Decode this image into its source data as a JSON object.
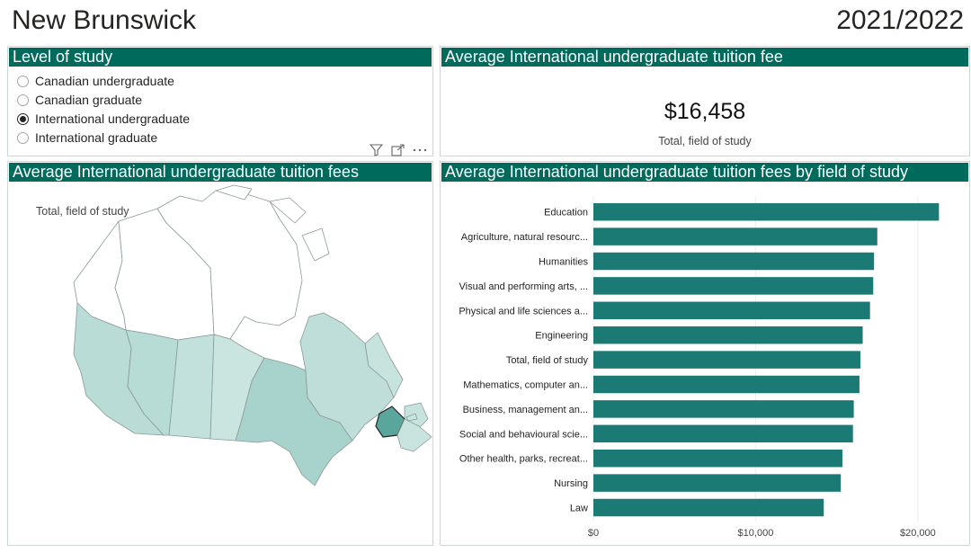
{
  "header": {
    "title": "New Brunswick",
    "year": "2021/2022"
  },
  "level_panel": {
    "title": "Level of study",
    "options": [
      {
        "label": "Canadian undergraduate",
        "selected": false
      },
      {
        "label": "Canadian graduate",
        "selected": false
      },
      {
        "label": "International undergraduate",
        "selected": true
      },
      {
        "label": "International graduate",
        "selected": false
      }
    ]
  },
  "kpi_panel": {
    "title": "Average International undergraduate tuition fee",
    "value": "$16,458",
    "subtitle": "Total, field of study"
  },
  "map_panel": {
    "title": "Average International undergraduate tuition fees",
    "label": "Total, field of study",
    "highlight_color": "#5aa69c"
  },
  "bar_panel": {
    "title": "Average International undergraduate tuition fees by field of study"
  },
  "chart_data": {
    "type": "bar",
    "orientation": "horizontal",
    "categories": [
      "Education",
      "Agriculture, natural resourc...",
      "Humanities",
      "Visual and performing arts, ...",
      "Physical and life sciences a...",
      "Engineering",
      "Total, field of study",
      "Mathematics, computer an...",
      "Business, management an...",
      "Social and behavioural scie...",
      "Other health, parks, recreat...",
      "Nursing",
      "Law"
    ],
    "values": [
      21300,
      17500,
      17300,
      17250,
      17050,
      16600,
      16458,
      16400,
      16050,
      16000,
      15350,
      15250,
      14200
    ],
    "xlim": [
      0,
      22500
    ],
    "xticks": [
      {
        "value": 0,
        "label": "$0"
      },
      {
        "value": 10000,
        "label": "$10,000"
      },
      {
        "value": 20000,
        "label": "$20,000"
      }
    ],
    "bar_color": "#1b7b74",
    "grid": true
  }
}
